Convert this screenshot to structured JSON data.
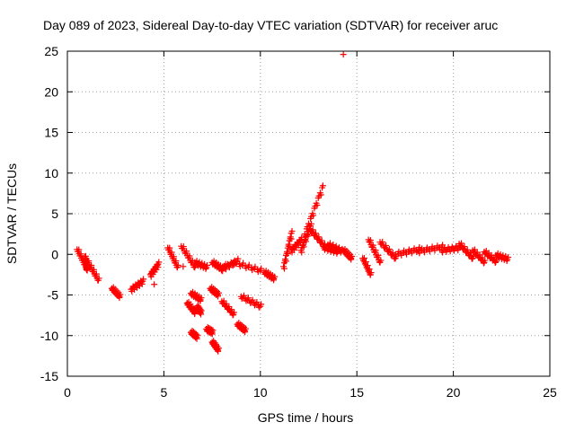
{
  "chart_data": {
    "type": "scatter",
    "title": "Day 089 of 2023, Sidereal Day-to-day VTEC variation (SDTVAR) for receiver aruc",
    "xlabel": "GPS time / hours",
    "ylabel": "SDTVAR / TECUs",
    "xlim": [
      0,
      25
    ],
    "ylim": [
      -15,
      25
    ],
    "xticks": [
      0,
      5,
      10,
      15,
      20,
      25
    ],
    "yticks": [
      -15,
      -10,
      -5,
      0,
      5,
      10,
      15,
      20,
      25
    ],
    "grid": true,
    "marker": "+",
    "color": "#ff0000",
    "series": [
      {
        "name": "SDTVAR",
        "clusters": [
          {
            "x": [
              0.5,
              1.0
            ],
            "y": [
              0.6,
              -1.8
            ]
          },
          {
            "x": [
              1.0,
              1.6
            ],
            "y": [
              -0.8,
              -3.2
            ]
          },
          {
            "x": [
              2.3,
              2.7
            ],
            "y": [
              -4.2,
              -5.2
            ]
          },
          {
            "x": [
              3.3,
              3.9
            ],
            "y": [
              -4.3,
              -3.3
            ]
          },
          {
            "x": [
              4.3,
              4.7
            ],
            "y": [
              -2.5,
              -1.2
            ]
          },
          {
            "x": [
              5.2,
              5.7
            ],
            "y": [
              0.8,
              -1.6
            ]
          },
          {
            "x": [
              5.9,
              6.6
            ],
            "y": [
              1.0,
              -1.6
            ]
          },
          {
            "x": [
              6.6,
              7.2
            ],
            "y": [
              -1.0,
              -1.6
            ]
          },
          {
            "x": [
              7.5,
              8.0
            ],
            "y": [
              -1.0,
              -1.8
            ]
          },
          {
            "x": [
              8.0,
              8.8
            ],
            "y": [
              -1.8,
              -0.8
            ]
          },
          {
            "x": [
              8.6,
              10.0
            ],
            "y": [
              -1.0,
              -2.0
            ]
          },
          {
            "x": [
              10.2,
              10.7
            ],
            "y": [
              -2.2,
              -3.0
            ]
          },
          {
            "x": [
              11.2,
              11.6
            ],
            "y": [
              -1.5,
              2.6
            ]
          },
          {
            "x": [
              11.6,
              12.1
            ],
            "y": [
              0.5,
              1.8
            ]
          },
          {
            "x": [
              12.1,
              12.6
            ],
            "y": [
              0.5,
              3.5
            ]
          },
          {
            "x": [
              12.6,
              13.3
            ],
            "y": [
              3.0,
              1.0
            ]
          },
          {
            "x": [
              13.3,
              14.0
            ],
            "y": [
              0.8,
              0.3
            ]
          },
          {
            "x": [
              12.3,
              13.2
            ],
            "y": [
              2.5,
              8.2
            ]
          },
          {
            "x": [
              13.5,
              14.2
            ],
            "y": [
              1.2,
              0.4
            ]
          },
          {
            "x": [
              14.3,
              14.7
            ],
            "y": [
              0.5,
              -0.5
            ]
          },
          {
            "x": [
              15.3,
              15.7
            ],
            "y": [
              -0.5,
              -2.5
            ]
          },
          {
            "x": [
              15.6,
              16.2
            ],
            "y": [
              1.8,
              -1.0
            ]
          },
          {
            "x": [
              16.2,
              17.0
            ],
            "y": [
              1.5,
              -0.5
            ]
          },
          {
            "x": [
              17.0,
              18.2
            ],
            "y": [
              0.0,
              0.6
            ]
          },
          {
            "x": [
              18.2,
              19.4
            ],
            "y": [
              0.4,
              0.9
            ]
          },
          {
            "x": [
              19.4,
              20.3
            ],
            "y": [
              0.5,
              0.8
            ]
          },
          {
            "x": [
              20.3,
              21.0
            ],
            "y": [
              1.3,
              -0.5
            ]
          },
          {
            "x": [
              21.0,
              21.6
            ],
            "y": [
              0.5,
              -1.0
            ]
          },
          {
            "x": [
              21.6,
              22.2
            ],
            "y": [
              0.3,
              -0.9
            ]
          },
          {
            "x": [
              22.2,
              22.8
            ],
            "y": [
              -0.1,
              -0.6
            ]
          },
          {
            "x": [
              0.9,
              1.0
            ],
            "y": [
              -0.3,
              -1.9
            ]
          },
          {
            "x": [
              6.2,
              6.6
            ],
            "y": [
              -6.0,
              -7.2
            ]
          },
          {
            "x": [
              6.4,
              6.9
            ],
            "y": [
              -4.8,
              -5.6
            ]
          },
          {
            "x": [
              6.7,
              6.9
            ],
            "y": [
              -6.5,
              -7.2
            ]
          },
          {
            "x": [
              6.4,
              6.7
            ],
            "y": [
              -9.6,
              -10.2
            ]
          },
          {
            "x": [
              7.2,
              7.5
            ],
            "y": [
              -9.2,
              -9.6
            ]
          },
          {
            "x": [
              7.5,
              7.8
            ],
            "y": [
              -10.8,
              -11.8
            ]
          },
          {
            "x": [
              7.4,
              7.8
            ],
            "y": [
              -4.2,
              -5.0
            ]
          },
          {
            "x": [
              8.0,
              8.6
            ],
            "y": [
              -5.8,
              -7.4
            ]
          },
          {
            "x": [
              8.8,
              9.2
            ],
            "y": [
              -8.6,
              -9.4
            ]
          },
          {
            "x": [
              9.0,
              10.0
            ],
            "y": [
              -5.2,
              -6.4
            ]
          }
        ],
        "singles": [
          [
            14.3,
            24.6
          ],
          [
            4.5,
            -3.7
          ],
          [
            6.0,
            -1.5
          ],
          [
            8.2,
            -1.2
          ]
        ]
      }
    ]
  }
}
